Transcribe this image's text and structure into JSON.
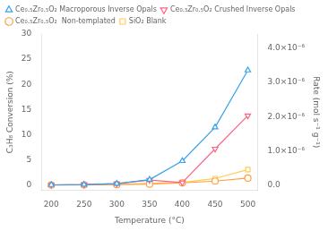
{
  "chart_data": {
    "type": "line",
    "x_label": "Temperature (°C)",
    "y_label": "C₃H₈ Conversion (%)",
    "y2_label": "Rate (mol s⁻¹ g⁻¹)",
    "x": [
      200,
      250,
      300,
      350,
      400,
      450,
      500
    ],
    "series": [
      {
        "name": "Ce₀.₅Zr₀.₅O₂ Macroporous Inverse Opals",
        "marker": "triangle-up",
        "values": [
          0.05,
          0.1,
          0.3,
          1.1,
          4.8,
          11.5,
          22.8
        ]
      },
      {
        "name": "Ce₀.₅Zr₀.₅O₂ Crushed Inverse Opals",
        "marker": "triangle-down",
        "values": [
          0.05,
          0.1,
          0.3,
          1.0,
          0.5,
          7.2,
          13.8
        ]
      },
      {
        "name": "Ce₀.₅Zr₀.₅O₂  Non-templated",
        "marker": "circle",
        "values": [
          0.02,
          0.05,
          0.1,
          0.2,
          0.45,
          0.8,
          1.4
        ]
      },
      {
        "name": "SiO₂ Blank",
        "marker": "square",
        "values": [
          0.02,
          0.05,
          0.18,
          0.35,
          0.55,
          1.3,
          3.1
        ]
      }
    ],
    "xlim": [
      185,
      515
    ],
    "xticks": [
      200,
      250,
      300,
      350,
      400,
      450,
      500
    ],
    "ylim": [
      -1,
      30
    ],
    "yticks": [
      0,
      5,
      10,
      15,
      20,
      25,
      30
    ],
    "y2lim": [
      -1.47e-07,
      4.41e-06
    ],
    "y2ticks": [
      {
        "value": 0.0,
        "label": "0.0"
      },
      {
        "value": 1e-06,
        "label": "1.0×10⁻⁶"
      },
      {
        "value": 2e-06,
        "label": "2.0×10⁻⁶"
      },
      {
        "value": 3e-06,
        "label": "3.0×10⁻⁶"
      },
      {
        "value": 4e-06,
        "label": "4.0×10⁻⁶"
      }
    ],
    "grid": false,
    "legend": "upper left"
  }
}
